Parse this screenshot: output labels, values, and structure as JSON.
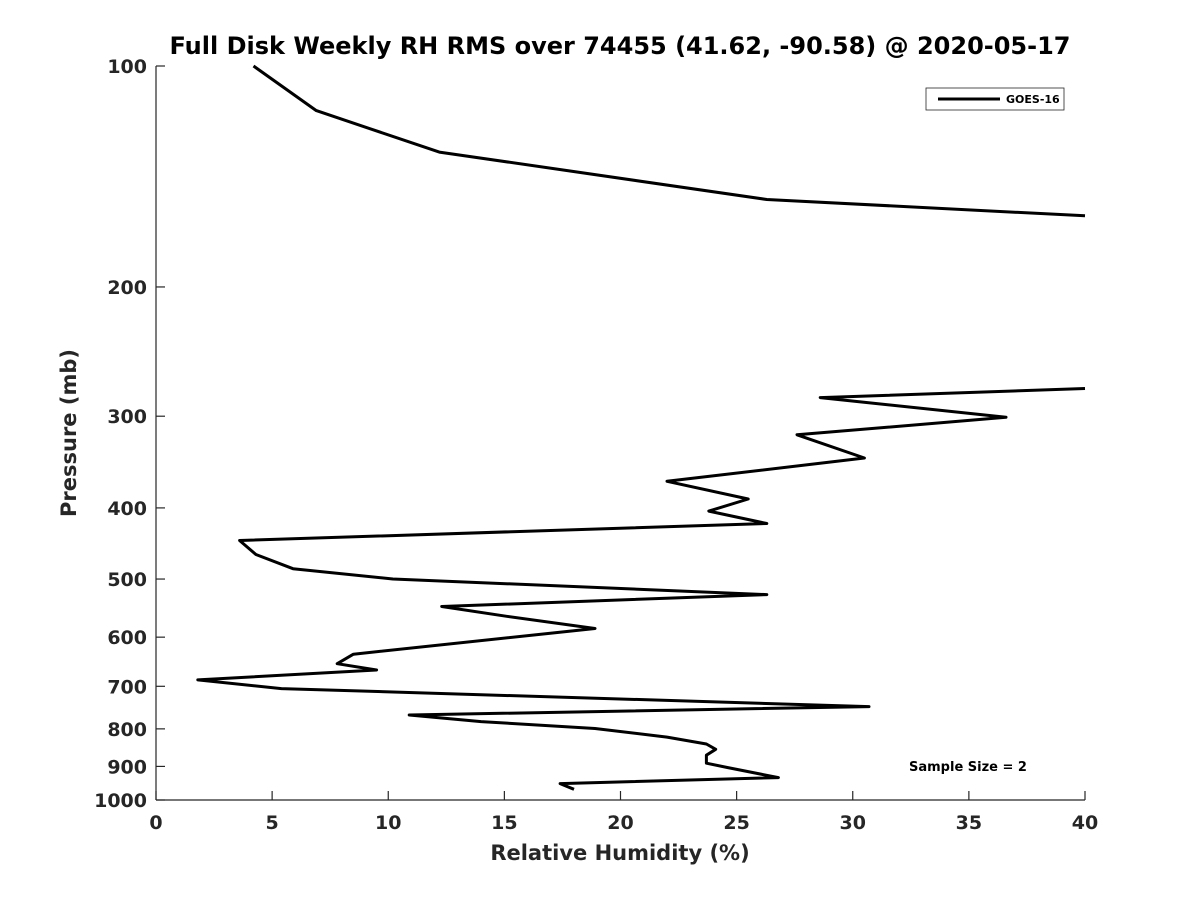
{
  "chart_data": {
    "type": "line",
    "title": "Full Disk Weekly RH RMS over 74455 (41.62, -90.58) @ 2020-05-17",
    "xlabel": "Relative Humidity (%)",
    "ylabel": "Pressure (mb)",
    "xlim": [
      0,
      40
    ],
    "ylim": [
      100,
      1000
    ],
    "y_scale": "log",
    "y_reversed": true,
    "x_ticks": [
      0,
      5,
      10,
      15,
      20,
      25,
      30,
      35,
      40
    ],
    "y_ticks": [
      100,
      200,
      300,
      400,
      500,
      600,
      700,
      800,
      900,
      1000
    ],
    "grid": false,
    "legend_position": "top-right",
    "annotation": "Sample Size = 2",
    "series": [
      {
        "name": "GOES-16",
        "color": "#000000",
        "segments": [
          [
            [
              4.2,
              100
            ],
            [
              6.9,
              115
            ],
            [
              12.2,
              131
            ],
            [
              26.3,
              152
            ],
            [
              40,
              160
            ]
          ],
          [
            [
              40,
              275
            ],
            [
              28.6,
              283
            ],
            [
              36.6,
              301
            ],
            [
              27.6,
              318
            ],
            [
              30.5,
              342
            ],
            [
              22.0,
              368
            ],
            [
              25.5,
              389
            ],
            [
              23.8,
              404
            ],
            [
              26.3,
              420
            ],
            [
              3.6,
              443
            ],
            [
              4.3,
              463
            ],
            [
              5.9,
              484
            ],
            [
              10.2,
              500
            ],
            [
              26.3,
              525
            ],
            [
              12.3,
              545
            ],
            [
              15.1,
              562
            ],
            [
              18.9,
              584
            ],
            [
              8.5,
              633
            ],
            [
              7.8,
              652
            ],
            [
              9.5,
              665
            ],
            [
              1.8,
              686
            ],
            [
              5.4,
              705
            ],
            [
              30.7,
              746
            ],
            [
              10.9,
              766
            ],
            [
              14.0,
              782
            ],
            [
              18.9,
              799
            ],
            [
              22.0,
              821
            ],
            [
              23.7,
              839
            ],
            [
              24.1,
              853
            ],
            [
              23.7,
              869
            ],
            [
              23.7,
              891
            ],
            [
              24.6,
              903
            ],
            [
              26.8,
              932
            ],
            [
              17.4,
              950
            ],
            [
              18.0,
              967
            ]
          ]
        ]
      }
    ]
  }
}
